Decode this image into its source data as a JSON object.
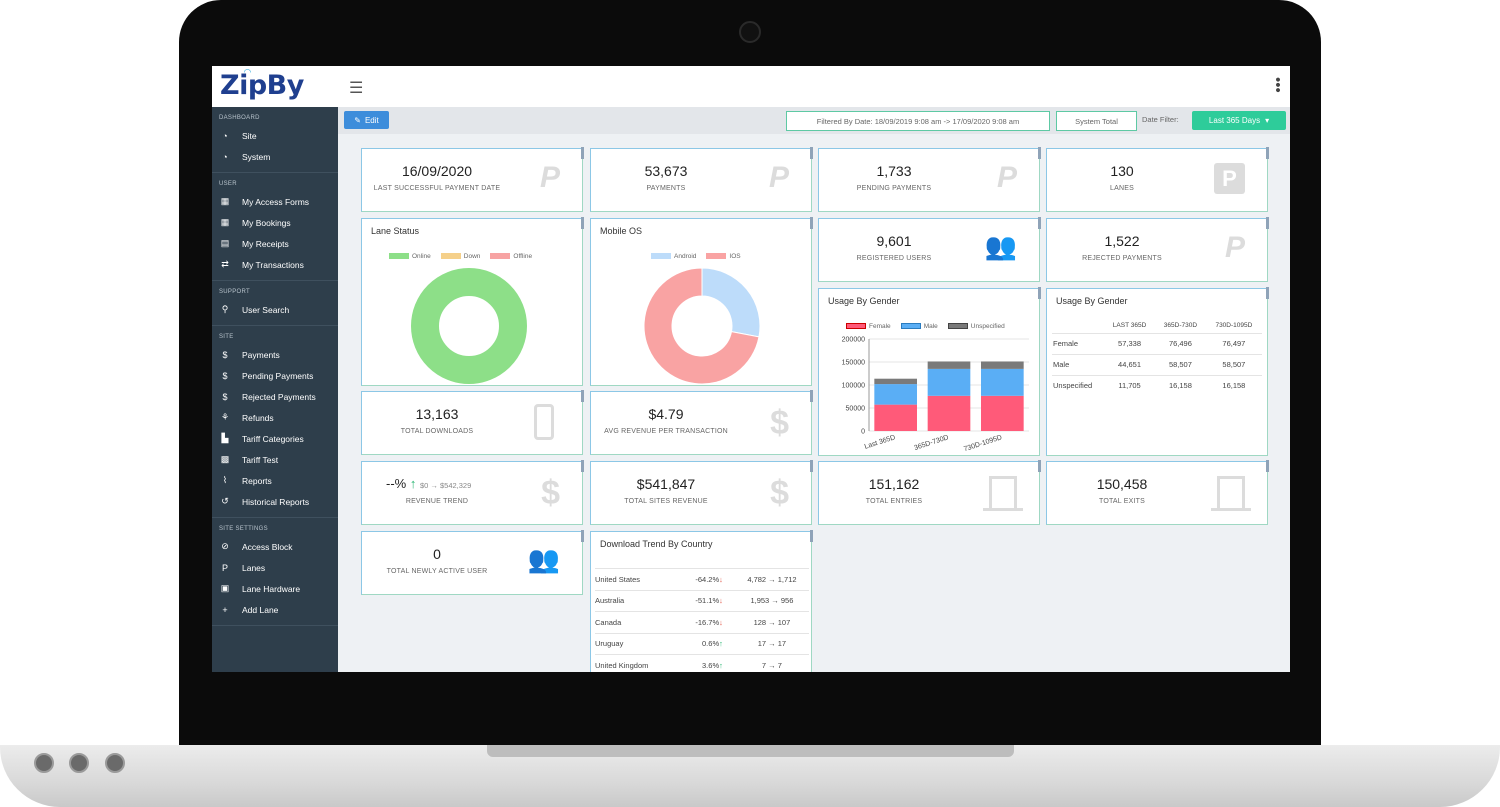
{
  "app": {
    "logo": "ZipBy"
  },
  "sidebar": {
    "sections": [
      {
        "title": "DASHBOARD",
        "items": [
          {
            "label": "Site",
            "icon": "dashboard-icon"
          },
          {
            "label": "System",
            "icon": "dashboard-icon"
          }
        ]
      },
      {
        "title": "USER",
        "items": [
          {
            "label": "My Access Forms",
            "icon": "calendar-icon"
          },
          {
            "label": "My Bookings",
            "icon": "calendar-icon"
          },
          {
            "label": "My Receipts",
            "icon": "receipt-icon"
          },
          {
            "label": "My Transactions",
            "icon": "exchange-icon"
          }
        ]
      },
      {
        "title": "SUPPORT",
        "items": [
          {
            "label": "User Search",
            "icon": "search-icon"
          }
        ]
      },
      {
        "title": "SITE",
        "items": [
          {
            "label": "Payments",
            "icon": "dollar-icon"
          },
          {
            "label": "Pending Payments",
            "icon": "dollar-icon"
          },
          {
            "label": "Rejected Payments",
            "icon": "dollar-icon"
          },
          {
            "label": "Refunds",
            "icon": "hand-dollar-icon"
          },
          {
            "label": "Tariff Categories",
            "icon": "sitemap-icon"
          },
          {
            "label": "Tariff Test",
            "icon": "calculator-icon"
          },
          {
            "label": "Reports",
            "icon": "line-chart-icon"
          },
          {
            "label": "Historical Reports",
            "icon": "history-icon"
          }
        ]
      },
      {
        "title": "SITE SETTINGS",
        "items": [
          {
            "label": "Access Block",
            "icon": "ban-icon"
          },
          {
            "label": "Lanes",
            "icon": "parking-icon"
          },
          {
            "label": "Lane Hardware",
            "icon": "chip-icon"
          },
          {
            "label": "Add Lane",
            "icon": "plus-icon"
          }
        ]
      }
    ]
  },
  "toolbar": {
    "edit_label": "Edit",
    "filtered_by": "Filtered By Date: 18/09/2019 9:08 am -> 17/09/2020 9:08 am",
    "system_total": "System Total",
    "date_filter_label": "Date Filter:",
    "date_filter_value": "Last 365 Days"
  },
  "stats": {
    "last_payment": {
      "value": "16/09/2020",
      "label": "LAST SUCCESSFUL PAYMENT DATE",
      "icon": "paypal-icon"
    },
    "payments": {
      "value": "53,673",
      "label": "PAYMENTS",
      "icon": "paypal-icon"
    },
    "pending": {
      "value": "1,733",
      "label": "PENDING PAYMENTS",
      "icon": "paypal-icon"
    },
    "lanes": {
      "value": "130",
      "label": "LANES",
      "icon": "parking-icon"
    },
    "registered": {
      "value": "9,601",
      "label": "REGISTERED USERS",
      "icon": "users-icon"
    },
    "rejected": {
      "value": "1,522",
      "label": "REJECTED PAYMENTS",
      "icon": "paypal-icon"
    },
    "downloads": {
      "value": "13,163",
      "label": "TOTAL DOWNLOADS",
      "icon": "mobile-icon"
    },
    "avg_revenue": {
      "value": "$4.79",
      "label": "AVG REVENUE PER TRANSACTION",
      "icon": "dollar-icon"
    },
    "revenue_trend": {
      "value": "--%",
      "range": "$0 → $542,329",
      "label": "REVENUE TREND",
      "icon": "dollar-icon"
    },
    "total_revenue": {
      "value": "$541,847",
      "label": "TOTAL SITES REVENUE",
      "icon": "dollar-icon"
    },
    "entries": {
      "value": "151,162",
      "label": "TOTAL ENTRIES",
      "icon": "door-icon"
    },
    "exits": {
      "value": "150,458",
      "label": "TOTAL EXITS",
      "icon": "door-icon"
    },
    "new_users": {
      "value": "0",
      "label": "TOTAL NEWLY ACTIVE USER",
      "icon": "users-icon"
    }
  },
  "lane_status": {
    "title": "Lane Status",
    "legend": [
      "Online",
      "Down",
      "Offline"
    ],
    "colors": [
      "#8ddf88",
      "#f5d08a",
      "#f7a3a3"
    ]
  },
  "mobile_os": {
    "title": "Mobile OS",
    "legend": [
      "Android",
      "IOS"
    ],
    "colors": [
      "#bddcfa",
      "#f9a3a3"
    ]
  },
  "gender_chart": {
    "title": "Usage By Gender",
    "legend": [
      "Female",
      "Male",
      "Unspecified"
    ],
    "colors": [
      "#ff5a79",
      "#5aaef5",
      "#7a7a7a"
    ]
  },
  "gender_table": {
    "title": "Usage By Gender",
    "columns": [
      "LAST 365D",
      "365D-730D",
      "730D-1095D"
    ],
    "rows": [
      {
        "label": "Female",
        "values": [
          "57,338",
          "76,496",
          "76,497"
        ]
      },
      {
        "label": "Male",
        "values": [
          "44,651",
          "58,507",
          "58,507"
        ]
      },
      {
        "label": "Unspecified",
        "values": [
          "11,705",
          "16,158",
          "16,158"
        ]
      }
    ]
  },
  "download_trend": {
    "title": "Download Trend By Country",
    "rows": [
      {
        "country": "United States",
        "pct": "-64.2%",
        "dir": "down",
        "range": "4,782 → 1,712"
      },
      {
        "country": "Australia",
        "pct": "-51.1%",
        "dir": "down",
        "range": "1,953 → 956"
      },
      {
        "country": "Canada",
        "pct": "-16.7%",
        "dir": "down",
        "range": "128 → 107"
      },
      {
        "country": "Uruguay",
        "pct": "0.6%",
        "dir": "up",
        "range": "17 → 17"
      },
      {
        "country": "United Kingdom",
        "pct": "3.6%",
        "dir": "up",
        "range": "7 → 7"
      }
    ]
  },
  "chart_data": [
    {
      "type": "pie",
      "title": "Lane Status",
      "labels": [
        "Online",
        "Down",
        "Offline"
      ],
      "values": [
        100,
        0,
        0
      ],
      "colors": [
        "#8ddf88",
        "#f5d08a",
        "#f7a3a3"
      ]
    },
    {
      "type": "pie",
      "title": "Mobile OS",
      "labels": [
        "Android",
        "IOS"
      ],
      "values": [
        28,
        72
      ],
      "colors": [
        "#bddcfa",
        "#f9a3a3"
      ]
    },
    {
      "type": "bar",
      "stacked": true,
      "title": "Usage By Gender",
      "categories": [
        "Last 365D",
        "365D-730D",
        "730D-1095D"
      ],
      "series": [
        {
          "name": "Female",
          "values": [
            57338,
            76496,
            76497
          ],
          "color": "#ff5a79"
        },
        {
          "name": "Male",
          "values": [
            44651,
            58507,
            58507
          ],
          "color": "#5aaef5"
        },
        {
          "name": "Unspecified",
          "values": [
            11705,
            16158,
            16158
          ],
          "color": "#7a7a7a"
        }
      ],
      "ylim": [
        0,
        200000
      ],
      "yticks": [
        "0",
        "50000",
        "100000",
        "150000",
        "200000"
      ],
      "grid": true,
      "legend": "top"
    }
  ]
}
